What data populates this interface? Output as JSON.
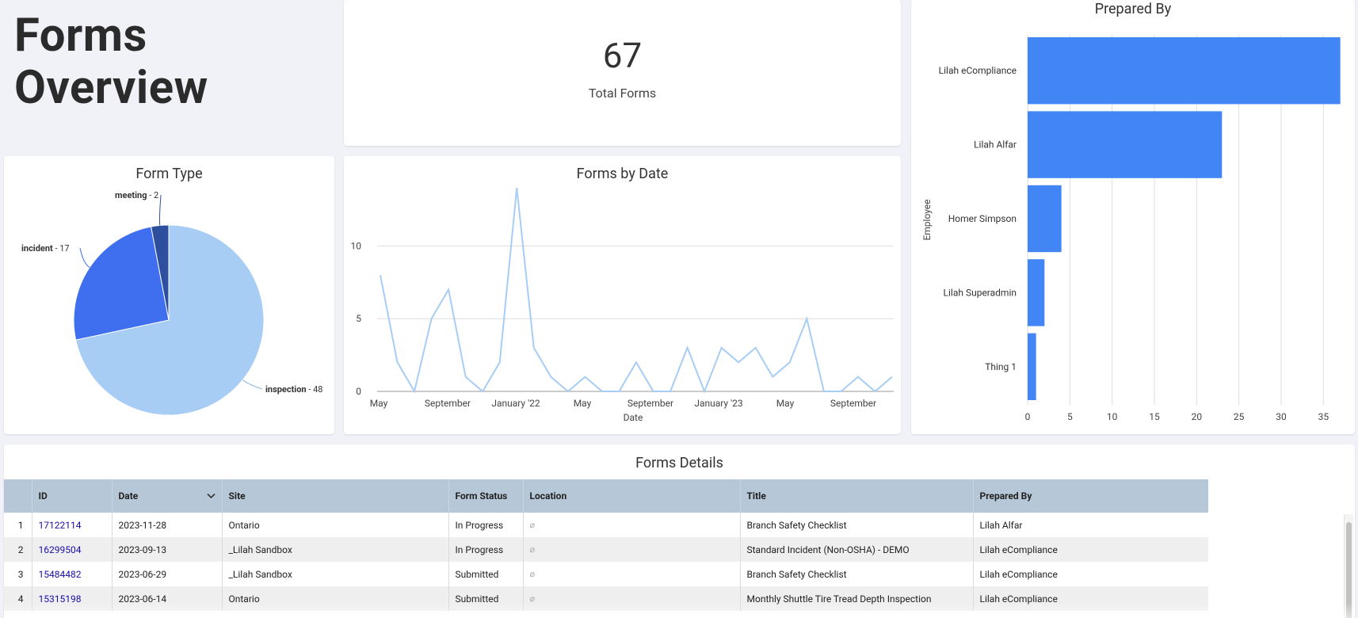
{
  "page": {
    "title_line1": "Forms",
    "title_line2": "Overview"
  },
  "kpi": {
    "value": "67",
    "label": "Total Forms"
  },
  "colors": {
    "bar": "#4285f4",
    "line": "#a7cdf5",
    "pie_inspection": "#a7cdf5",
    "pie_incident": "#3f6fef",
    "pie_meeting": "#2e4f9e",
    "table_header": "#b6c8d8",
    "link": "#1a0dab"
  },
  "chart_data": [
    {
      "type": "pie",
      "title": "Form Type",
      "slices": [
        {
          "label": "inspection",
          "value": 48
        },
        {
          "label": "incident",
          "value": 17
        },
        {
          "label": "meeting",
          "value": 2
        }
      ]
    },
    {
      "type": "line",
      "title": "Forms by Date",
      "xlabel": "Date",
      "ylabel": "",
      "x_tick_labels": [
        "May",
        "September",
        "January '22",
        "May",
        "September",
        "January '23",
        "May",
        "September"
      ],
      "y_ticks": [
        0,
        5,
        10
      ],
      "ylim": [
        0,
        14
      ],
      "values": [
        8,
        2,
        0,
        5,
        7,
        1,
        0,
        2,
        14,
        3,
        1,
        0,
        1,
        0,
        0,
        2,
        0,
        0,
        3,
        0,
        3,
        2,
        3,
        1,
        2,
        5,
        0,
        0,
        1,
        0,
        1
      ]
    },
    {
      "type": "bar",
      "orientation": "horizontal",
      "title": "Prepared By",
      "ylabel": "Employee",
      "categories": [
        "Lilah eCompliance",
        "Lilah Alfar",
        "Homer Simpson",
        "Lilah Superadmin",
        "Thing 1"
      ],
      "values": [
        37,
        23,
        4,
        2,
        1
      ],
      "x_ticks": [
        0,
        5,
        10,
        15,
        20,
        25,
        30,
        35
      ],
      "xlim": [
        0,
        37.5
      ]
    }
  ],
  "table": {
    "title": "Forms Details",
    "columns": [
      "",
      "ID",
      "Date",
      "Site",
      "Form Status",
      "Location",
      "Title",
      "Prepared By"
    ],
    "rows": [
      {
        "n": "1",
        "id": "17122114",
        "date": "2023-11-28",
        "site": "Ontario",
        "status": "In Progress",
        "location": "⌀",
        "title": "Branch Safety Checklist",
        "by": "Lilah Alfar"
      },
      {
        "n": "2",
        "id": "16299504",
        "date": "2023-09-13",
        "site": "_Lilah Sandbox",
        "status": "In Progress",
        "location": "⌀",
        "title": "Standard Incident (Non-OSHA) - DEMO",
        "by": "Lilah eCompliance"
      },
      {
        "n": "3",
        "id": "15484482",
        "date": "2023-06-29",
        "site": "_Lilah Sandbox",
        "status": "Submitted",
        "location": "⌀",
        "title": "Branch Safety Checklist",
        "by": "Lilah eCompliance"
      },
      {
        "n": "4",
        "id": "15315198",
        "date": "2023-06-14",
        "site": "Ontario",
        "status": "Submitted",
        "location": "⌀",
        "title": "Monthly Shuttle Tire Tread Depth Inspection",
        "by": "Lilah eCompliance"
      }
    ]
  }
}
